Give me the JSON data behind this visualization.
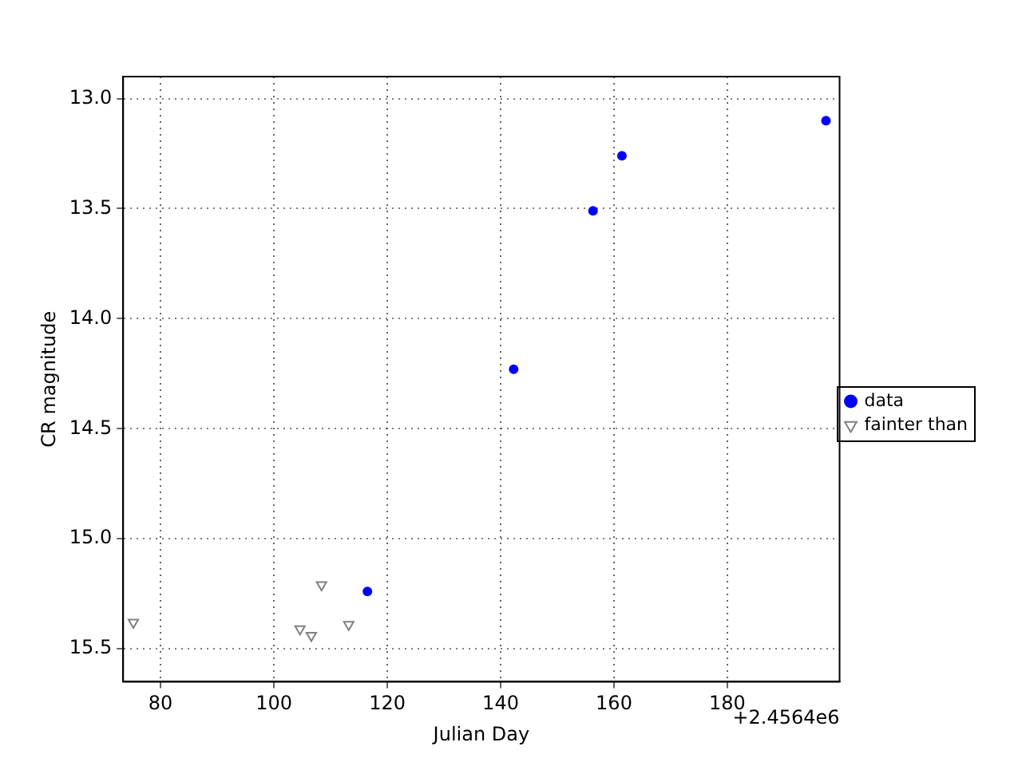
{
  "chart_data": {
    "type": "scatter",
    "xlabel": "Julian Day",
    "ylabel": "CR magnitude",
    "series": [
      {
        "name": "data",
        "color": "#0000ff",
        "marker": "circle",
        "x": [
          116.5,
          142.3,
          156.3,
          161.4,
          197.4
        ],
        "values": [
          15.24,
          14.23,
          13.51,
          13.26,
          13.1
        ]
      },
      {
        "name": "fainter than",
        "color": "#808080",
        "marker": "triangle",
        "x": [
          75.2,
          104.6,
          106.6,
          108.4,
          113.2
        ],
        "values": [
          15.38,
          15.41,
          15.44,
          15.21,
          15.39
        ]
      }
    ],
    "xlim": [
      73.4,
      199.8
    ],
    "xticks": [
      80,
      100,
      120,
      140,
      160,
      180
    ],
    "ylim": [
      15.65,
      12.9
    ],
    "yticks": [
      {
        "value": 13,
        "label": "13.0"
      },
      {
        "value": 13.5,
        "label": "13.5"
      },
      {
        "value": 14,
        "label": "14.0"
      },
      {
        "value": 14.5,
        "label": "14.5"
      },
      {
        "value": 15,
        "label": "15.0"
      },
      {
        "value": 15.5,
        "label": "15.5"
      }
    ],
    "annotations": [
      "+2.4564e6"
    ],
    "grid": true,
    "legend": "right"
  }
}
